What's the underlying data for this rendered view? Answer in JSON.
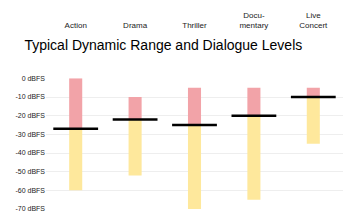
{
  "chart_data": {
    "type": "floating_bar",
    "title": "Typical Dynamic Range and Dialogue Levels",
    "categories": [
      "Action",
      "Drama",
      "Thriller",
      "Docu-\nmentary",
      "Live\nConcert"
    ],
    "series": [
      {
        "type": "bar",
        "color": "#f2a3a8",
        "values": [
          0,
          -10,
          -5,
          -5,
          -5
        ]
      },
      {
        "type": "bar",
        "color": "#fee89c",
        "values": [
          -60,
          -52,
          -70,
          -65,
          -35
        ]
      },
      {
        "type": "level",
        "color": "#000000",
        "marker": "line-ew",
        "values": [
          -27,
          -22,
          -25,
          -20,
          -10
        ]
      }
    ],
    "ylim": [
      -70,
      0
    ],
    "yticks": [
      {
        "value": 0,
        "label": "0 dBFS"
      },
      {
        "value": -10,
        "label": "-10 dBFS"
      },
      {
        "value": -20,
        "label": "-20 dBFS"
      },
      {
        "value": -30,
        "label": "-30 dBFS"
      },
      {
        "value": -40,
        "label": "-40 dBFS"
      },
      {
        "value": -50,
        "label": "-50 dBFS"
      },
      {
        "value": -60,
        "label": "-60 dBFS"
      },
      {
        "value": -70,
        "label": "-70 dBFS"
      }
    ],
    "grid": true
  }
}
